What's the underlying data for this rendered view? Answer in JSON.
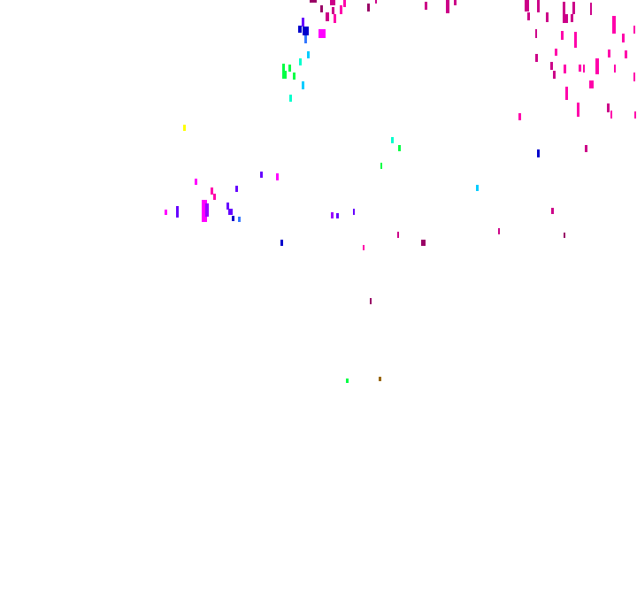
{
  "background": "#ffffff",
  "palette": {
    "maroon": "#990066",
    "dark-magenta": "#cc0088",
    "pink": "#ff00aa",
    "magenta": "#ff00ff",
    "violet": "#6600ff",
    "purple": "#9900ff",
    "blue": "#0000cc",
    "light-blue": "#3377ff",
    "cyan": "#00ccff",
    "aqua": "#00ffcc",
    "green": "#00ff44",
    "yellow": "#ffff00",
    "olive": "#996600"
  }
}
